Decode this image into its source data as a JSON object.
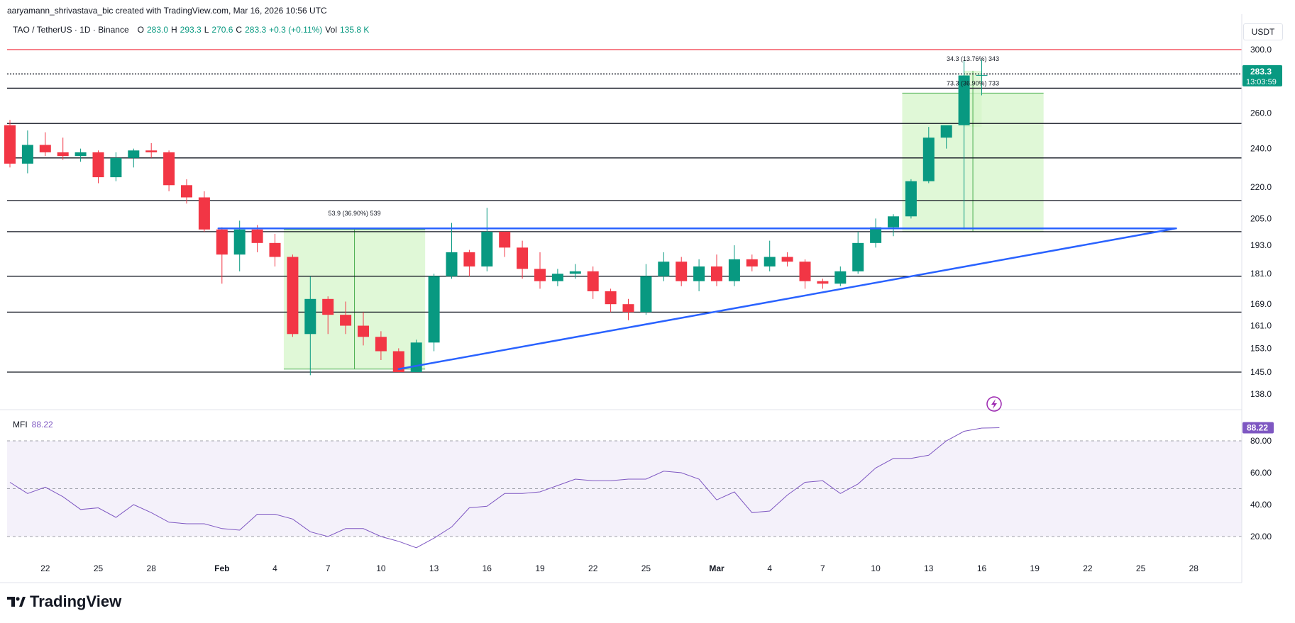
{
  "header": {
    "credit": "aaryamann_shrivastava_bic created with TradingView.com, Mar 16, 2026 10:56 UTC"
  },
  "legend": {
    "symbol": "TAO / TetherUS · 1D · Binance",
    "o_label": "O",
    "o_value": "283.0",
    "h_label": "H",
    "h_value": "293.3",
    "l_label": "L",
    "l_value": "270.6",
    "c_label": "C",
    "c_value": "283.3",
    "change": "+0.3 (+0.11%)",
    "vol_label": "Vol",
    "vol_value": "135.8 K"
  },
  "currency": "USDT",
  "mfi": {
    "label": "MFI",
    "value": "88.22"
  },
  "logo": {
    "text": "TradingView"
  },
  "colors": {
    "up": "#089981",
    "down": "#f23645",
    "trendline": "#2962ff",
    "mfi": "#7e57c2",
    "measure_fill": "#d6f5c9",
    "measure_line": "#4caf50",
    "resistance": "#f23645"
  },
  "chart_data": {
    "type": "candlestick",
    "price_axis": {
      "ticks": [
        300.0,
        260.0,
        240.0,
        220.0,
        205.0,
        193.0,
        181.0,
        169.0,
        161.0,
        153.0,
        145.0,
        138.0
      ],
      "tick_labels": [
        "300.0",
        "260.0",
        "240.0",
        "220.0",
        "205.0",
        "193.0",
        "181.0",
        "169.0",
        "161.0",
        "153.0",
        "145.0",
        "138.0"
      ],
      "scale": "log",
      "current_price": "283.3",
      "countdown": "13:03:59"
    },
    "time_axis": {
      "labels": [
        "22",
        "25",
        "28",
        "Feb",
        "4",
        "7",
        "10",
        "13",
        "16",
        "19",
        "22",
        "25",
        "Mar",
        "4",
        "7",
        "10",
        "13",
        "16",
        "19",
        "22",
        "25",
        "28"
      ],
      "bold_labels": [
        "Feb",
        "Mar"
      ],
      "label_day_index": [
        2,
        5,
        8,
        12,
        15,
        18,
        21,
        24,
        27,
        30,
        33,
        36,
        40,
        43,
        46,
        49,
        52,
        55,
        58,
        61,
        64,
        67
      ]
    },
    "candles": [
      {
        "o": 253,
        "h": 256,
        "l": 230,
        "c": 232
      },
      {
        "o": 232,
        "h": 250,
        "l": 227,
        "c": 242
      },
      {
        "o": 242,
        "h": 249,
        "l": 236,
        "c": 238
      },
      {
        "o": 238,
        "h": 246,
        "l": 234,
        "c": 236
      },
      {
        "o": 236,
        "h": 240,
        "l": 233,
        "c": 238
      },
      {
        "o": 238,
        "h": 239,
        "l": 222,
        "c": 225
      },
      {
        "o": 225,
        "h": 238,
        "l": 223,
        "c": 235
      },
      {
        "o": 235,
        "h": 240,
        "l": 230,
        "c": 239
      },
      {
        "o": 239,
        "h": 243,
        "l": 235,
        "c": 238
      },
      {
        "o": 238,
        "h": 239,
        "l": 218,
        "c": 221
      },
      {
        "o": 221,
        "h": 224,
        "l": 212,
        "c": 215
      },
      {
        "o": 215,
        "h": 218,
        "l": 199,
        "c": 200
      },
      {
        "o": 200,
        "h": 201,
        "l": 177,
        "c": 189
      },
      {
        "o": 189,
        "h": 204,
        "l": 182,
        "c": 200
      },
      {
        "o": 200,
        "h": 202,
        "l": 190,
        "c": 194
      },
      {
        "o": 194,
        "h": 198,
        "l": 184,
        "c": 188
      },
      {
        "o": 188,
        "h": 189,
        "l": 157,
        "c": 158
      },
      {
        "o": 158,
        "h": 180,
        "l": 144,
        "c": 171
      },
      {
        "o": 171,
        "h": 172,
        "l": 158,
        "c": 165
      },
      {
        "o": 165,
        "h": 170,
        "l": 158,
        "c": 161
      },
      {
        "o": 161,
        "h": 166,
        "l": 154,
        "c": 157
      },
      {
        "o": 157,
        "h": 159,
        "l": 149,
        "c": 152
      },
      {
        "o": 152,
        "h": 153,
        "l": 145,
        "c": 145
      },
      {
        "o": 145,
        "h": 156,
        "l": 145,
        "c": 155
      },
      {
        "o": 155,
        "h": 181,
        "l": 152,
        "c": 180
      },
      {
        "o": 180,
        "h": 203,
        "l": 179,
        "c": 190
      },
      {
        "o": 190,
        "h": 191,
        "l": 180,
        "c": 184
      },
      {
        "o": 184,
        "h": 210,
        "l": 182,
        "c": 199
      },
      {
        "o": 199,
        "h": 199,
        "l": 188,
        "c": 192
      },
      {
        "o": 192,
        "h": 195,
        "l": 179,
        "c": 183
      },
      {
        "o": 183,
        "h": 190,
        "l": 175,
        "c": 178
      },
      {
        "o": 178,
        "h": 183,
        "l": 176,
        "c": 181
      },
      {
        "o": 181,
        "h": 185,
        "l": 179,
        "c": 182
      },
      {
        "o": 182,
        "h": 184,
        "l": 171,
        "c": 174
      },
      {
        "o": 174,
        "h": 175,
        "l": 166,
        "c": 169
      },
      {
        "o": 169,
        "h": 171,
        "l": 163,
        "c": 166
      },
      {
        "o": 166,
        "h": 185,
        "l": 165,
        "c": 180
      },
      {
        "o": 180,
        "h": 190,
        "l": 178,
        "c": 186
      },
      {
        "o": 186,
        "h": 188,
        "l": 176,
        "c": 178
      },
      {
        "o": 178,
        "h": 187,
        "l": 174,
        "c": 184
      },
      {
        "o": 184,
        "h": 189,
        "l": 176,
        "c": 178
      },
      {
        "o": 178,
        "h": 193,
        "l": 176,
        "c": 187
      },
      {
        "o": 187,
        "h": 189,
        "l": 182,
        "c": 184
      },
      {
        "o": 184,
        "h": 195,
        "l": 182,
        "c": 188
      },
      {
        "o": 188,
        "h": 190,
        "l": 184,
        "c": 186
      },
      {
        "o": 186,
        "h": 187,
        "l": 175,
        "c": 178
      },
      {
        "o": 178,
        "h": 179,
        "l": 175,
        "c": 177
      },
      {
        "o": 177,
        "h": 184,
        "l": 176,
        "c": 182
      },
      {
        "o": 182,
        "h": 199,
        "l": 181,
        "c": 194
      },
      {
        "o": 194,
        "h": 205,
        "l": 192,
        "c": 201
      },
      {
        "o": 201,
        "h": 207,
        "l": 197,
        "c": 206
      },
      {
        "o": 206,
        "h": 224,
        "l": 205,
        "c": 223
      },
      {
        "o": 223,
        "h": 252,
        "l": 222,
        "c": 246
      },
      {
        "o": 246,
        "h": 252,
        "l": 240,
        "c": 253
      },
      {
        "o": 253,
        "h": 293,
        "l": 200,
        "c": 283
      },
      {
        "o": 283.0,
        "h": 293.3,
        "l": 270.6,
        "c": 283.3
      }
    ],
    "horizontal_levels": [
      300.0,
      284.0,
      275.0,
      254.0,
      235.0,
      213.5,
      199.0,
      180.0,
      166.0,
      145.0
    ],
    "resistance_level": 300.0,
    "trendlines": [
      {
        "name": "upper-trendline",
        "from": {
          "day": 12,
          "price": 200.5
        },
        "to": {
          "day": 66,
          "price": 200.5
        }
      },
      {
        "name": "lower-trendline",
        "from": {
          "day": 22,
          "price": 146.0
        },
        "to": {
          "day": 66,
          "price": 200.5
        }
      }
    ],
    "measurements": [
      {
        "name": "measure-feb",
        "label": "53.9 (36.90%) 539",
        "from_day": 15.5,
        "to_day": 23.5,
        "top": 200.0,
        "bottom": 146.0
      },
      {
        "name": "measure-mar",
        "label": "73.3 (36.90%) 733",
        "from_day": 50.5,
        "to_day": 58.5,
        "top": 272.0,
        "bottom": 199.0
      },
      {
        "name": "measure-latest",
        "label": "34.3 (13.76%) 343",
        "from_day": 54.0,
        "to_day": 55.0,
        "top": 286.0,
        "bottom": 252.0
      }
    ],
    "mfi": {
      "name": "MFI",
      "last": 88.22,
      "upper_band": 80.0,
      "middle_band": 50.0,
      "lower_band": 20.0,
      "ticks": [
        "80.00",
        "60.00",
        "40.00",
        "20.00"
      ],
      "tick_values": [
        80,
        60,
        40,
        20
      ],
      "values": [
        54,
        47,
        51,
        45,
        37,
        38,
        32,
        40,
        35,
        29,
        28,
        28,
        25,
        24,
        34,
        34,
        31,
        23,
        20,
        25,
        25,
        20,
        17,
        13,
        19,
        26,
        38,
        39,
        47,
        47,
        48,
        52,
        56,
        55,
        55,
        56,
        56,
        61,
        60,
        56,
        43,
        48,
        35,
        36,
        46,
        54,
        55,
        47,
        53,
        63,
        69,
        69,
        71,
        80,
        86,
        88,
        88.22
      ]
    }
  }
}
